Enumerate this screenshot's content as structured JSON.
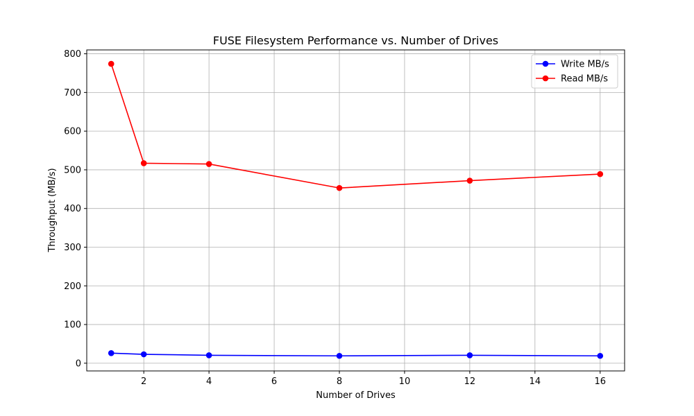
{
  "chart_data": {
    "type": "line",
    "title": "FUSE Filesystem Performance vs. Number of Drives",
    "xlabel": "Number of Drives",
    "ylabel": "Throughput (MB/s)",
    "x": [
      1,
      2,
      4,
      8,
      12,
      16
    ],
    "xlim": [
      0.25,
      16.75
    ],
    "ylim": [
      -20,
      810
    ],
    "xticks": [
      2,
      4,
      6,
      8,
      10,
      12,
      14,
      16
    ],
    "yticks": [
      0,
      100,
      200,
      300,
      400,
      500,
      600,
      700,
      800
    ],
    "grid": true,
    "legend_position": "top-right",
    "series": [
      {
        "name": "Write MB/s",
        "color": "#0000ff",
        "values": [
          26,
          23,
          20.5,
          19,
          20.5,
          19
        ]
      },
      {
        "name": "Read MB/s",
        "color": "#ff0000",
        "values": [
          774,
          517,
          515,
          453,
          472,
          489
        ]
      }
    ]
  }
}
